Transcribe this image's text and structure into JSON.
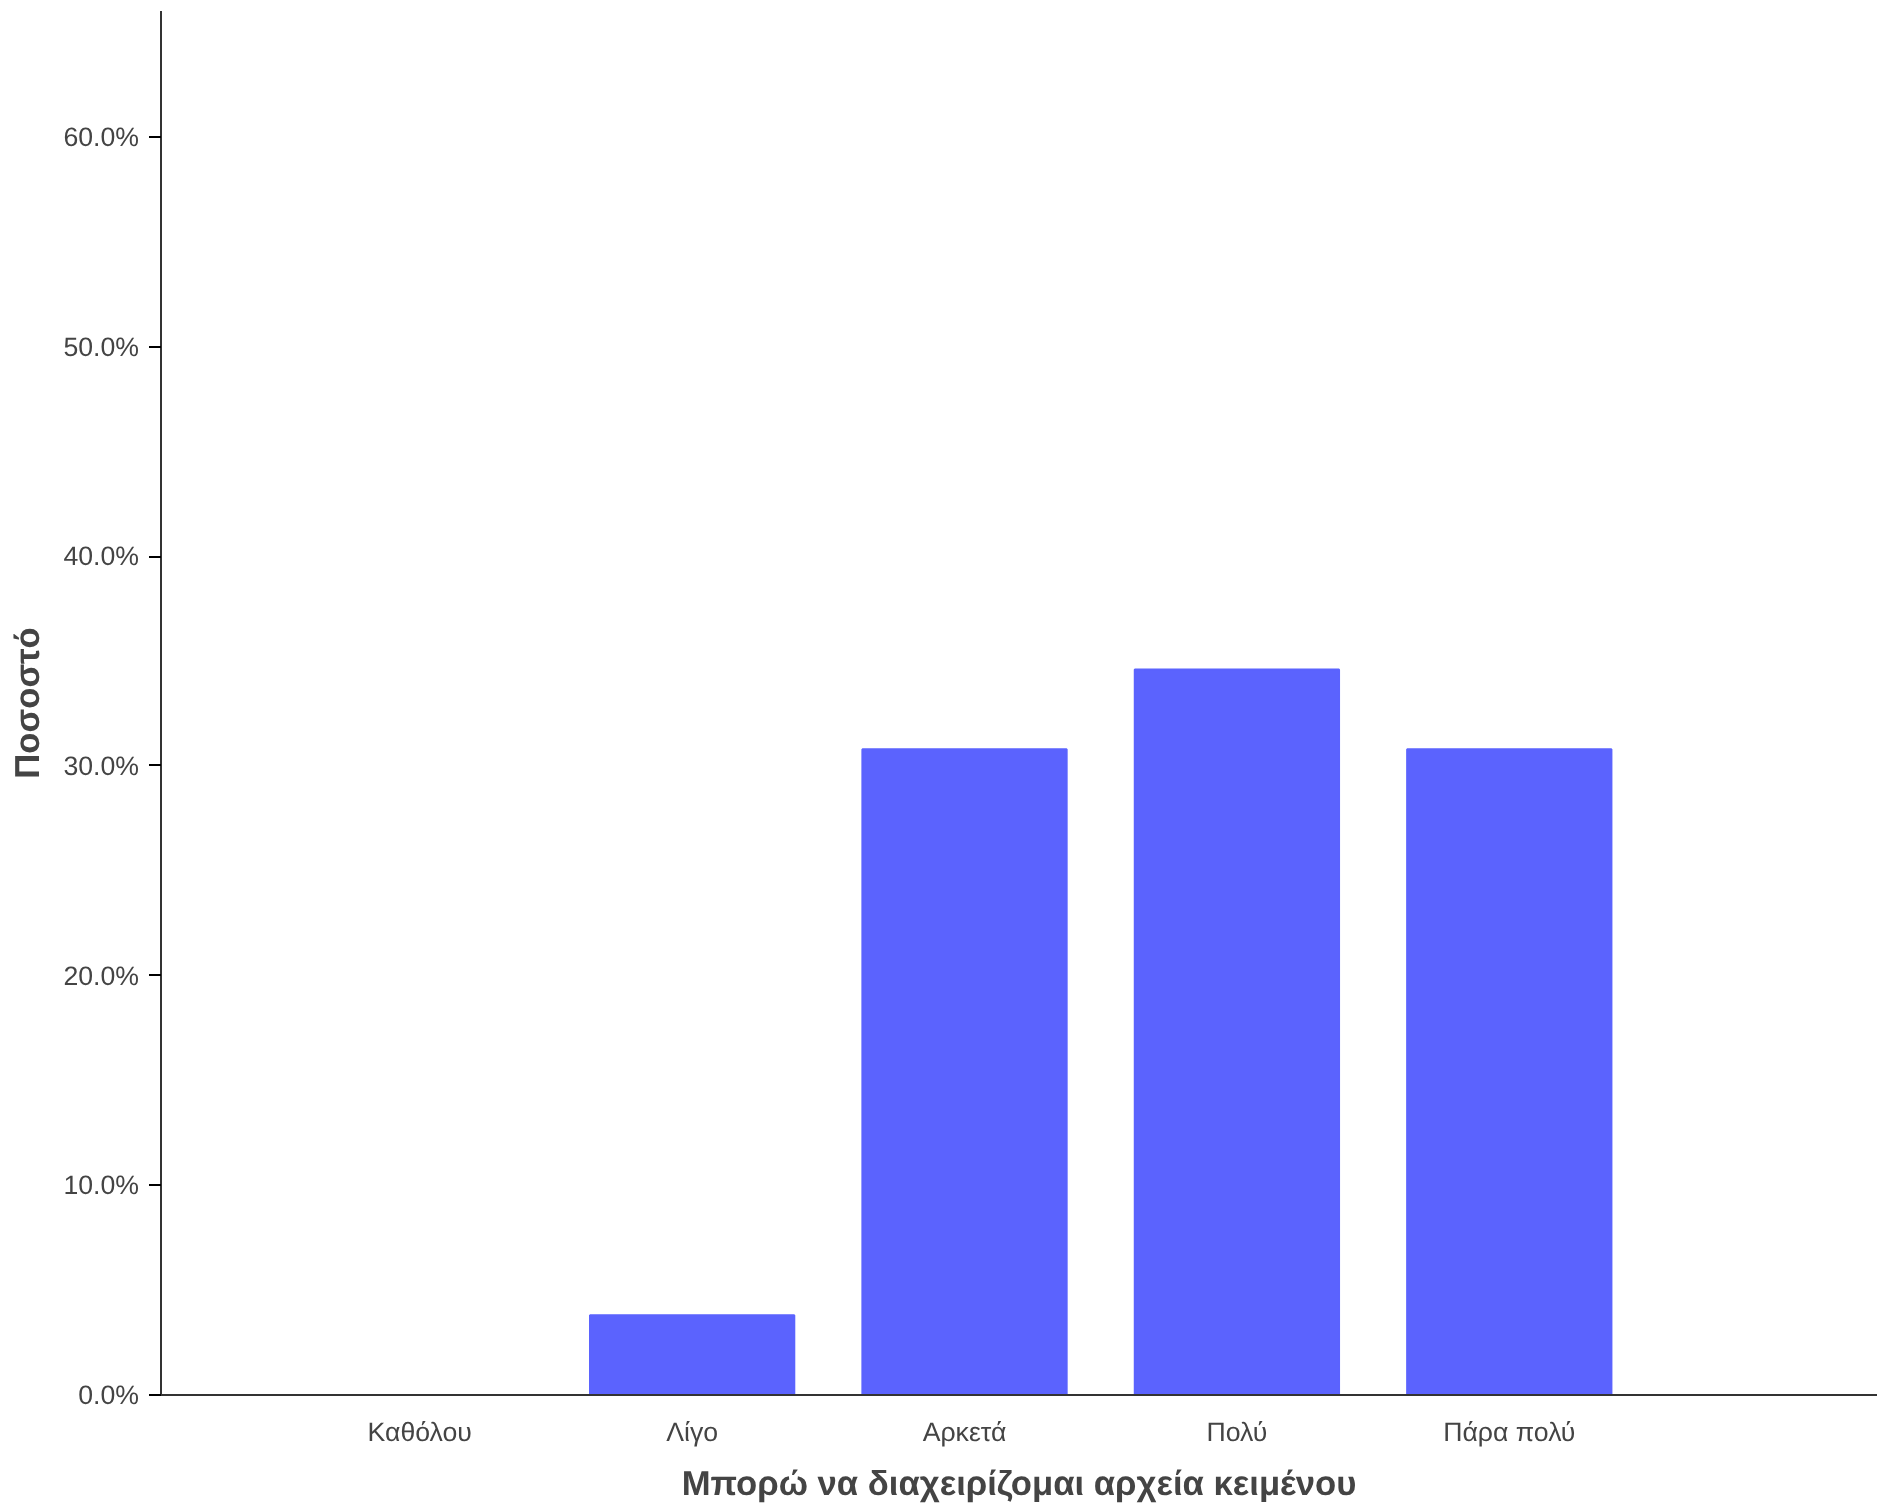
{
  "chart_data": {
    "type": "bar",
    "xlabel": "Μπορώ να διαχειρίζομαι αρχεία κειμένου",
    "ylabel": "Ποσοστό",
    "categories": [
      "Καθόλου",
      "Λίγο",
      "Αρκετά",
      "Πολύ",
      "Πάρα πολύ"
    ],
    "values": [
      0,
      3.8,
      30.8,
      34.6,
      30.8
    ],
    "color": "#5b63fe",
    "ylim": [
      0,
      66
    ],
    "yticks": [
      {
        "value": 0,
        "label": "0.0%"
      },
      {
        "value": 10,
        "label": "10.0%"
      },
      {
        "value": 20,
        "label": "20.0%"
      },
      {
        "value": 30,
        "label": "30.0%"
      },
      {
        "value": 40,
        "label": "40.0%"
      },
      {
        "value": 50,
        "label": "50.0%"
      },
      {
        "value": 60,
        "label": "60.0%"
      }
    ],
    "grid": false
  }
}
